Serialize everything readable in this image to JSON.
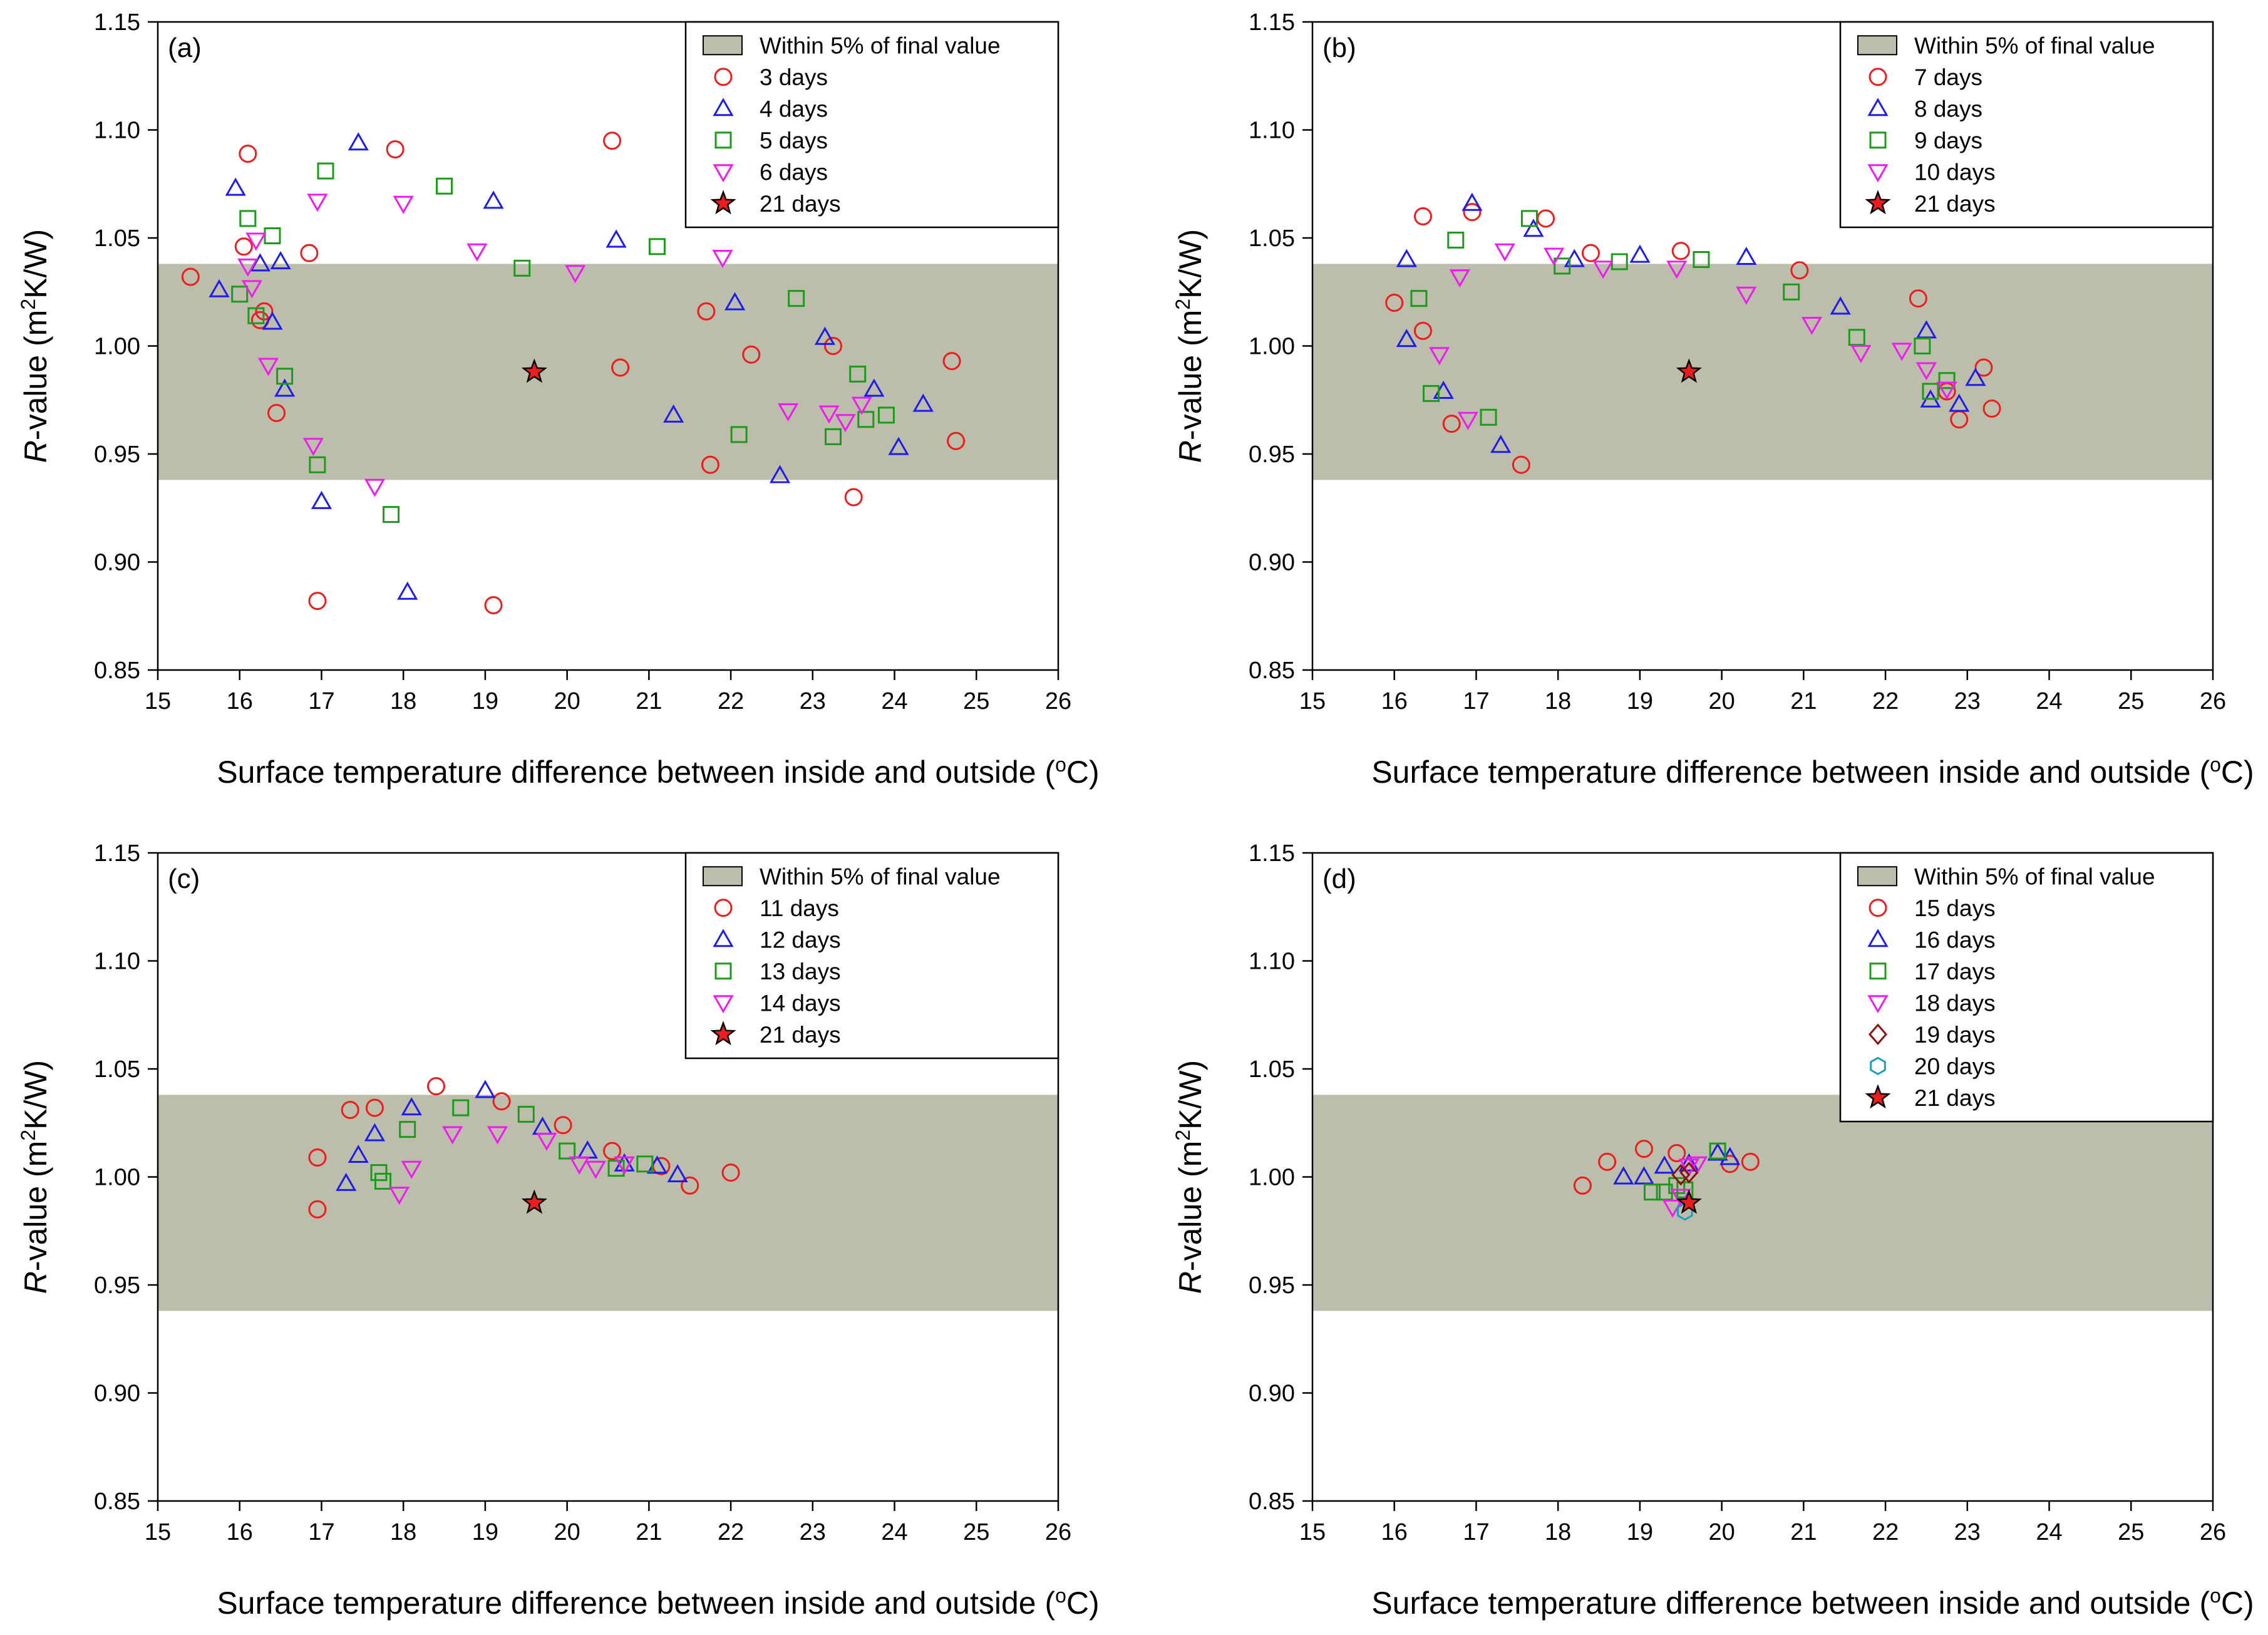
{
  "colors": {
    "band": "#bdbdab",
    "c3": "#ee1c1c",
    "c4": "#1c1cee",
    "c5": "#1c9a1c",
    "c6": "#ee1cee",
    "c19": "#8a1010",
    "c20": "#1ca0b8",
    "star_fill": "#ee1c1c"
  },
  "chart_data": [
    {
      "type": "scatter",
      "panel_label": "(a)",
      "xlabel": "Surface temperature difference between inside and outside (",
      "xlabel_sup": "o",
      "xlabel_tail": "C)",
      "ylabel_italic": "R",
      "ylabel": "-value (m",
      "ylabel_sup": "2",
      "ylabel_tail": "K/W)",
      "xlim": [
        15,
        26
      ],
      "ylim": [
        0.85,
        1.15
      ],
      "xticks": [
        "15",
        "16",
        "17",
        "18",
        "19",
        "20",
        "21",
        "22",
        "23",
        "24",
        "25",
        "26"
      ],
      "yticks": [
        "0.85",
        "0.90",
        "0.95",
        "1.00",
        "1.05",
        "1.10",
        "1.15"
      ],
      "band": {
        "label": "Within 5% of final value",
        "ymin": 0.938,
        "ymax": 1.038
      },
      "series": [
        {
          "name": "3 days",
          "marker": "circle",
          "color": "#ee1c1c",
          "x": [
            15.4,
            16.05,
            16.1,
            16.25,
            16.3,
            16.45,
            16.85,
            16.95,
            17.9,
            19.1,
            20.55,
            20.65,
            21.7,
            21.75,
            22.25,
            23.25,
            23.5,
            24.7,
            24.75
          ],
          "y": [
            1.032,
            1.046,
            1.089,
            1.012,
            1.016,
            0.969,
            1.043,
            0.882,
            1.091,
            0.88,
            1.095,
            0.99,
            1.016,
            0.945,
            0.996,
            1.0,
            0.93,
            0.993,
            0.956
          ]
        },
        {
          "name": "4 days",
          "marker": "triangle",
          "color": "#1c1cee",
          "x": [
            15.75,
            15.95,
            16.25,
            16.4,
            16.5,
            16.55,
            17.0,
            17.45,
            18.05,
            19.1,
            20.6,
            21.3,
            22.05,
            22.6,
            23.15,
            23.75,
            24.05,
            24.35
          ],
          "y": [
            1.026,
            1.073,
            1.038,
            1.011,
            1.039,
            0.98,
            0.928,
            1.094,
            0.886,
            1.067,
            1.049,
            0.968,
            1.02,
            0.94,
            1.004,
            0.98,
            0.953,
            0.973
          ]
        },
        {
          "name": "5 days",
          "marker": "square",
          "color": "#1c9a1c",
          "x": [
            16.0,
            16.1,
            16.2,
            16.4,
            16.55,
            16.95,
            17.05,
            17.85,
            18.5,
            19.45,
            21.1,
            22.1,
            22.8,
            23.25,
            23.55,
            23.65,
            23.9
          ],
          "y": [
            1.024,
            1.059,
            1.014,
            1.051,
            0.986,
            0.945,
            1.081,
            0.922,
            1.074,
            1.036,
            1.046,
            0.959,
            1.022,
            0.958,
            0.987,
            0.966,
            0.968
          ]
        },
        {
          "name": "6 days",
          "marker": "triangle-down",
          "color": "#ee1cee",
          "x": [
            16.1,
            16.15,
            16.2,
            16.35,
            16.9,
            16.95,
            17.65,
            18.0,
            18.9,
            20.1,
            21.9,
            22.7,
            23.2,
            23.4,
            23.6
          ],
          "y": [
            1.037,
            1.027,
            1.049,
            0.991,
            0.954,
            1.067,
            0.935,
            1.066,
            1.044,
            1.034,
            1.041,
            0.97,
            0.969,
            0.965,
            0.973
          ]
        },
        {
          "name": "21 days",
          "marker": "star",
          "color": "#ee1c1c",
          "x": [
            19.6
          ],
          "y": [
            0.988
          ]
        }
      ]
    },
    {
      "type": "scatter",
      "panel_label": "(b)",
      "xlabel": "Surface temperature difference between inside and outside (",
      "xlabel_sup": "o",
      "xlabel_tail": "C)",
      "ylabel_italic": "R",
      "ylabel": "-value (m",
      "ylabel_sup": "2",
      "ylabel_tail": "K/W)",
      "xlim": [
        15,
        26
      ],
      "ylim": [
        0.85,
        1.15
      ],
      "xticks": [
        "15",
        "16",
        "17",
        "18",
        "19",
        "20",
        "21",
        "22",
        "23",
        "24",
        "25",
        "26"
      ],
      "yticks": [
        "0.85",
        "0.90",
        "0.95",
        "1.00",
        "1.05",
        "1.10",
        "1.15"
      ],
      "band": {
        "label": "Within 5% of final value",
        "ymin": 0.938,
        "ymax": 1.038
      },
      "series": [
        {
          "name": "7 days",
          "marker": "circle",
          "color": "#ee1c1c",
          "x": [
            16.0,
            16.35,
            16.35,
            16.7,
            16.95,
            17.55,
            17.85,
            18.4,
            19.5,
            20.95,
            22.4,
            22.75,
            22.9,
            23.2,
            23.3
          ],
          "y": [
            1.02,
            1.06,
            1.007,
            0.964,
            1.062,
            0.945,
            1.059,
            1.043,
            1.044,
            1.035,
            1.022,
            0.979,
            0.966,
            0.99,
            0.971
          ]
        },
        {
          "name": "8 days",
          "marker": "triangle",
          "color": "#1c1cee",
          "x": [
            16.15,
            16.15,
            16.6,
            16.95,
            17.3,
            17.7,
            18.2,
            19.0,
            20.3,
            21.45,
            22.5,
            22.55,
            22.9,
            23.1
          ],
          "y": [
            1.04,
            1.003,
            0.979,
            1.066,
            0.954,
            1.054,
            1.04,
            1.042,
            1.041,
            1.018,
            1.007,
            0.975,
            0.973,
            0.985
          ]
        },
        {
          "name": "9 days",
          "marker": "square",
          "color": "#1c9a1c",
          "x": [
            16.3,
            16.45,
            16.75,
            17.15,
            17.65,
            18.05,
            18.75,
            19.75,
            20.85,
            21.65,
            22.45,
            22.55,
            22.75
          ],
          "y": [
            1.022,
            0.978,
            1.049,
            0.967,
            1.059,
            1.037,
            1.039,
            1.04,
            1.025,
            1.004,
            1.0,
            0.979,
            0.984
          ]
        },
        {
          "name": "10 days",
          "marker": "triangle-down",
          "color": "#ee1cee",
          "x": [
            16.55,
            16.8,
            16.9,
            17.35,
            17.95,
            18.55,
            19.45,
            20.3,
            21.1,
            21.7,
            22.2,
            22.5,
            22.75
          ],
          "y": [
            0.996,
            1.032,
            0.966,
            1.044,
            1.042,
            1.036,
            1.036,
            1.024,
            1.01,
            0.997,
            0.998,
            0.989,
            0.98
          ]
        },
        {
          "name": "21 days",
          "marker": "star",
          "color": "#ee1c1c",
          "x": [
            19.6
          ],
          "y": [
            0.988
          ]
        }
      ]
    },
    {
      "type": "scatter",
      "panel_label": "(c)",
      "xlabel": "Surface temperature difference between inside and outside (",
      "xlabel_sup": "o",
      "xlabel_tail": "C)",
      "ylabel_italic": "R",
      "ylabel": "-value (m",
      "ylabel_sup": "2",
      "ylabel_tail": "K/W)",
      "xlim": [
        15,
        26
      ],
      "ylim": [
        0.85,
        1.15
      ],
      "xticks": [
        "15",
        "16",
        "17",
        "18",
        "19",
        "20",
        "21",
        "22",
        "23",
        "24",
        "25",
        "26"
      ],
      "yticks": [
        "0.85",
        "0.90",
        "0.95",
        "1.00",
        "1.05",
        "1.10",
        "1.15"
      ],
      "band": {
        "label": "Within 5% of final value",
        "ymin": 0.938,
        "ymax": 1.038
      },
      "series": [
        {
          "name": "11 days",
          "marker": "circle",
          "color": "#ee1c1c",
          "x": [
            16.95,
            16.95,
            17.35,
            17.65,
            18.4,
            19.2,
            19.95,
            20.55,
            21.15,
            21.5,
            22.0
          ],
          "y": [
            1.009,
            0.985,
            1.031,
            1.032,
            1.042,
            1.035,
            1.024,
            1.012,
            1.005,
            0.996,
            1.002
          ]
        },
        {
          "name": "12 days",
          "marker": "triangle",
          "color": "#1c1cee",
          "x": [
            17.3,
            17.45,
            17.65,
            18.1,
            19.0,
            19.7,
            20.25,
            20.7,
            21.1,
            21.35
          ],
          "y": [
            0.997,
            1.01,
            1.02,
            1.032,
            1.04,
            1.023,
            1.012,
            1.006,
            1.005,
            1.001
          ]
        },
        {
          "name": "13 days",
          "marker": "square",
          "color": "#1c9a1c",
          "x": [
            17.7,
            17.75,
            18.05,
            18.7,
            19.5,
            20.0,
            20.6,
            20.95
          ],
          "y": [
            1.002,
            0.998,
            1.022,
            1.032,
            1.029,
            1.012,
            1.004,
            1.006
          ]
        },
        {
          "name": "14 days",
          "marker": "triangle-down",
          "color": "#ee1cee",
          "x": [
            17.95,
            18.1,
            18.6,
            19.15,
            19.75,
            20.15,
            20.35,
            20.7
          ],
          "y": [
            0.992,
            1.004,
            1.02,
            1.02,
            1.017,
            1.006,
            1.004,
            1.006
          ]
        },
        {
          "name": "21 days",
          "marker": "star",
          "color": "#ee1c1c",
          "x": [
            19.6
          ],
          "y": [
            0.988
          ]
        }
      ]
    },
    {
      "type": "scatter",
      "panel_label": "(d)",
      "xlabel": "Surface temperature difference between inside and outside (",
      "xlabel_sup": "o",
      "xlabel_tail": "C)",
      "ylabel_italic": "R",
      "ylabel": "-value (m",
      "ylabel_sup": "2",
      "ylabel_tail": "K/W)",
      "xlim": [
        15,
        26
      ],
      "ylim": [
        0.85,
        1.15
      ],
      "xticks": [
        "15",
        "16",
        "17",
        "18",
        "19",
        "20",
        "21",
        "22",
        "23",
        "24",
        "25",
        "26"
      ],
      "yticks": [
        "0.85",
        "0.90",
        "0.95",
        "1.00",
        "1.05",
        "1.10",
        "1.15"
      ],
      "band": {
        "label": "Within 5% of final value",
        "ymin": 0.938,
        "ymax": 1.038
      },
      "series": [
        {
          "name": "15 days",
          "marker": "circle",
          "color": "#ee1c1c",
          "x": [
            18.3,
            18.6,
            19.05,
            19.45,
            20.1,
            20.35
          ],
          "y": [
            0.996,
            1.007,
            1.013,
            1.011,
            1.006,
            1.007
          ]
        },
        {
          "name": "16 days",
          "marker": "triangle",
          "color": "#1c1cee",
          "x": [
            18.8,
            19.05,
            19.3,
            19.6,
            19.95,
            20.1
          ],
          "y": [
            1.0,
            1.0,
            1.005,
            1.006,
            1.011,
            1.009
          ]
        },
        {
          "name": "17 days",
          "marker": "square",
          "color": "#1c9a1c",
          "x": [
            19.15,
            19.3,
            19.45,
            19.55,
            19.95
          ],
          "y": [
            0.993,
            0.993,
            0.996,
            0.994,
            1.012
          ]
        },
        {
          "name": "18 days",
          "marker": "triangle-down",
          "color": "#ee1cee",
          "x": [
            19.4,
            19.5,
            19.6,
            19.7
          ],
          "y": [
            0.986,
            0.991,
            1.005,
            1.006
          ]
        },
        {
          "name": "19 days",
          "marker": "diamond",
          "color": "#8a1010",
          "x": [
            19.5,
            19.6
          ],
          "y": [
            1.001,
            1.002
          ]
        },
        {
          "name": "20 days",
          "marker": "hexagon",
          "color": "#1ca0b8",
          "x": [
            19.55
          ],
          "y": [
            0.984
          ]
        },
        {
          "name": "21 days",
          "marker": "star",
          "color": "#ee1c1c",
          "x": [
            19.6
          ],
          "y": [
            0.988
          ]
        }
      ]
    }
  ]
}
